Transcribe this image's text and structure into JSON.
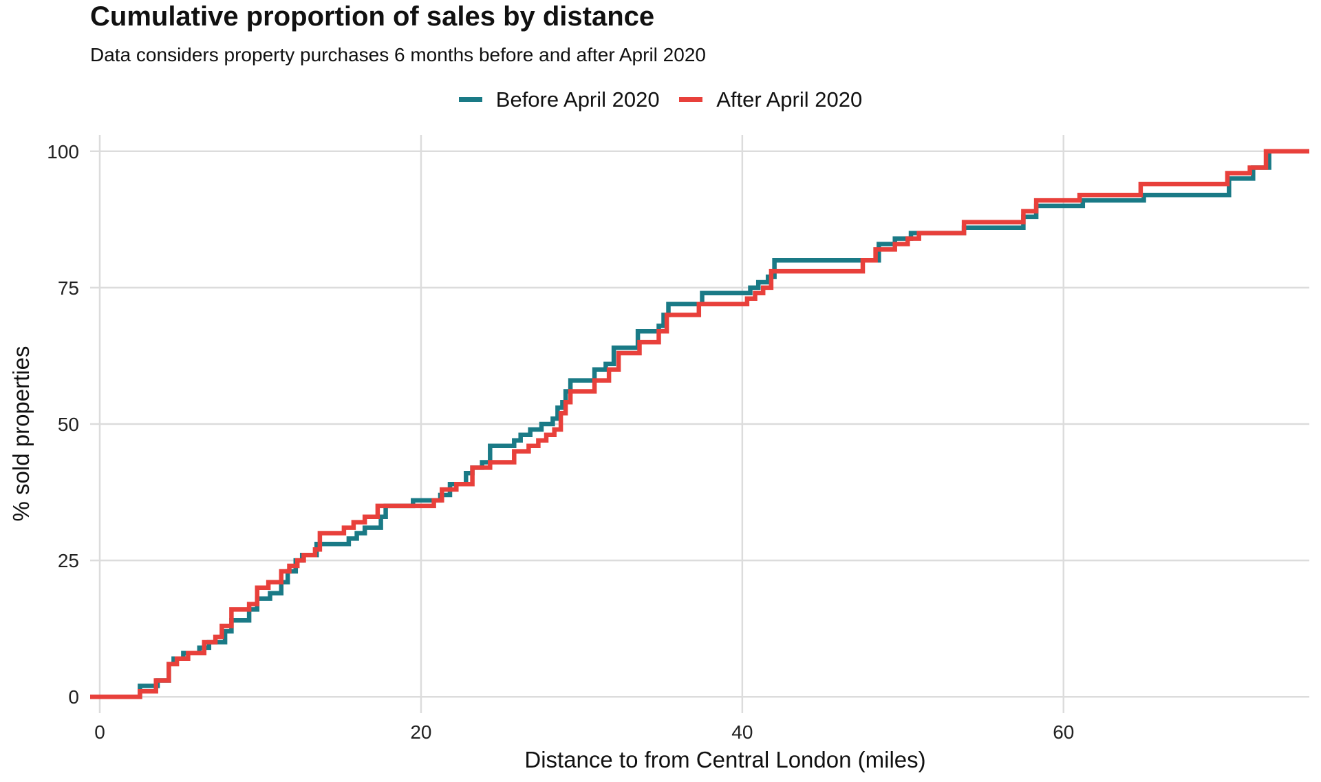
{
  "chart_data": {
    "type": "line",
    "step": true,
    "title": "Cumulative proportion of sales by distance",
    "subtitle": "Data considers property purchases 6 months before and after April 2020",
    "xlabel": "Distance to from Central London (miles)",
    "ylabel": "% sold properties",
    "xlim": [
      -0.6,
      75.3
    ],
    "ylim": [
      -3,
      103
    ],
    "xticks": [
      0,
      20,
      40,
      60
    ],
    "yticks": [
      0,
      25,
      50,
      75,
      100
    ],
    "grid": true,
    "legend_position": "top",
    "series": [
      {
        "name": "Before April 2020",
        "color": "#1a7a86",
        "points": [
          [
            -0.6,
            0
          ],
          [
            2.5,
            0
          ],
          [
            2.5,
            2
          ],
          [
            3.6,
            2
          ],
          [
            3.6,
            3
          ],
          [
            4.3,
            3
          ],
          [
            4.3,
            6
          ],
          [
            4.6,
            6
          ],
          [
            4.6,
            7
          ],
          [
            5.2,
            7
          ],
          [
            5.2,
            8
          ],
          [
            6.2,
            8
          ],
          [
            6.2,
            9
          ],
          [
            6.8,
            9
          ],
          [
            6.8,
            10
          ],
          [
            7.8,
            10
          ],
          [
            7.8,
            12
          ],
          [
            8.2,
            12
          ],
          [
            8.2,
            14
          ],
          [
            9.3,
            14
          ],
          [
            9.3,
            16
          ],
          [
            9.8,
            16
          ],
          [
            9.8,
            18
          ],
          [
            10.6,
            18
          ],
          [
            10.6,
            19
          ],
          [
            11.3,
            19
          ],
          [
            11.3,
            21
          ],
          [
            11.7,
            21
          ],
          [
            11.7,
            23
          ],
          [
            12.2,
            23
          ],
          [
            12.2,
            25
          ],
          [
            12.6,
            25
          ],
          [
            12.6,
            26
          ],
          [
            13.5,
            26
          ],
          [
            13.5,
            28
          ],
          [
            15.5,
            28
          ],
          [
            15.5,
            29
          ],
          [
            16.0,
            29
          ],
          [
            16.0,
            30
          ],
          [
            16.5,
            30
          ],
          [
            16.5,
            31
          ],
          [
            17.5,
            31
          ],
          [
            17.5,
            33
          ],
          [
            17.8,
            33
          ],
          [
            17.8,
            35
          ],
          [
            19.5,
            35
          ],
          [
            19.5,
            36
          ],
          [
            21.2,
            36
          ],
          [
            21.2,
            37
          ],
          [
            21.8,
            37
          ],
          [
            21.8,
            39
          ],
          [
            22.8,
            39
          ],
          [
            22.8,
            41
          ],
          [
            23.2,
            41
          ],
          [
            23.2,
            42
          ],
          [
            23.8,
            42
          ],
          [
            23.8,
            43
          ],
          [
            24.3,
            43
          ],
          [
            24.3,
            46
          ],
          [
            25.8,
            46
          ],
          [
            25.8,
            47
          ],
          [
            26.2,
            47
          ],
          [
            26.2,
            48
          ],
          [
            26.8,
            48
          ],
          [
            26.8,
            49
          ],
          [
            27.5,
            49
          ],
          [
            27.5,
            50
          ],
          [
            28.2,
            50
          ],
          [
            28.2,
            51
          ],
          [
            28.5,
            51
          ],
          [
            28.5,
            53
          ],
          [
            28.8,
            53
          ],
          [
            28.8,
            54
          ],
          [
            29.0,
            54
          ],
          [
            29.0,
            56
          ],
          [
            29.3,
            56
          ],
          [
            29.3,
            58
          ],
          [
            30.8,
            58
          ],
          [
            30.8,
            60
          ],
          [
            31.5,
            60
          ],
          [
            31.5,
            61
          ],
          [
            32.0,
            61
          ],
          [
            32.0,
            64
          ],
          [
            33.5,
            64
          ],
          [
            33.5,
            67
          ],
          [
            34.8,
            67
          ],
          [
            34.8,
            68
          ],
          [
            35.1,
            68
          ],
          [
            35.1,
            70
          ],
          [
            35.4,
            70
          ],
          [
            35.4,
            72
          ],
          [
            37.5,
            72
          ],
          [
            37.5,
            74
          ],
          [
            40.5,
            74
          ],
          [
            40.5,
            75
          ],
          [
            41.0,
            75
          ],
          [
            41.0,
            76
          ],
          [
            41.6,
            76
          ],
          [
            41.6,
            77
          ],
          [
            42.0,
            77
          ],
          [
            42.0,
            80
          ],
          [
            48.5,
            80
          ],
          [
            48.5,
            83
          ],
          [
            49.5,
            83
          ],
          [
            49.5,
            84
          ],
          [
            50.5,
            84
          ],
          [
            50.5,
            85
          ],
          [
            53.8,
            85
          ],
          [
            53.8,
            86
          ],
          [
            57.5,
            86
          ],
          [
            57.5,
            88
          ],
          [
            58.3,
            88
          ],
          [
            58.3,
            90
          ],
          [
            61.2,
            90
          ],
          [
            61.2,
            91
          ],
          [
            65.0,
            91
          ],
          [
            65.0,
            92
          ],
          [
            70.3,
            92
          ],
          [
            70.3,
            95
          ],
          [
            71.8,
            95
          ],
          [
            71.8,
            97
          ],
          [
            72.8,
            97
          ],
          [
            72.8,
            100
          ],
          [
            75.3,
            100
          ]
        ]
      },
      {
        "name": "After April 2020",
        "color": "#e8403b",
        "points": [
          [
            -0.6,
            0
          ],
          [
            2.5,
            0
          ],
          [
            2.5,
            1
          ],
          [
            3.5,
            1
          ],
          [
            3.5,
            3
          ],
          [
            4.3,
            3
          ],
          [
            4.3,
            6
          ],
          [
            4.8,
            6
          ],
          [
            4.8,
            7
          ],
          [
            5.5,
            7
          ],
          [
            5.5,
            8
          ],
          [
            6.5,
            8
          ],
          [
            6.5,
            10
          ],
          [
            7.2,
            10
          ],
          [
            7.2,
            11
          ],
          [
            7.6,
            11
          ],
          [
            7.6,
            13
          ],
          [
            8.2,
            13
          ],
          [
            8.2,
            16
          ],
          [
            9.3,
            16
          ],
          [
            9.3,
            17
          ],
          [
            9.8,
            17
          ],
          [
            9.8,
            20
          ],
          [
            10.5,
            20
          ],
          [
            10.5,
            21
          ],
          [
            11.3,
            21
          ],
          [
            11.3,
            23
          ],
          [
            11.8,
            23
          ],
          [
            11.8,
            24
          ],
          [
            12.3,
            24
          ],
          [
            12.3,
            25
          ],
          [
            12.7,
            25
          ],
          [
            12.7,
            26
          ],
          [
            13.4,
            26
          ],
          [
            13.4,
            27
          ],
          [
            13.7,
            27
          ],
          [
            13.7,
            30
          ],
          [
            15.2,
            30
          ],
          [
            15.2,
            31
          ],
          [
            15.8,
            31
          ],
          [
            15.8,
            32
          ],
          [
            16.5,
            32
          ],
          [
            16.5,
            33
          ],
          [
            17.3,
            33
          ],
          [
            17.3,
            35
          ],
          [
            20.8,
            35
          ],
          [
            20.8,
            36
          ],
          [
            21.3,
            36
          ],
          [
            21.3,
            38
          ],
          [
            22.2,
            38
          ],
          [
            22.2,
            39
          ],
          [
            23.2,
            39
          ],
          [
            23.2,
            42
          ],
          [
            24.3,
            42
          ],
          [
            24.3,
            43
          ],
          [
            25.8,
            43
          ],
          [
            25.8,
            45
          ],
          [
            26.7,
            45
          ],
          [
            26.7,
            46
          ],
          [
            27.3,
            46
          ],
          [
            27.3,
            47
          ],
          [
            27.8,
            47
          ],
          [
            27.8,
            48
          ],
          [
            28.3,
            48
          ],
          [
            28.3,
            49
          ],
          [
            28.7,
            49
          ],
          [
            28.7,
            52
          ],
          [
            29.0,
            52
          ],
          [
            29.0,
            54
          ],
          [
            29.3,
            54
          ],
          [
            29.3,
            56
          ],
          [
            30.8,
            56
          ],
          [
            30.8,
            58
          ],
          [
            31.7,
            58
          ],
          [
            31.7,
            60
          ],
          [
            32.3,
            60
          ],
          [
            32.3,
            63
          ],
          [
            33.6,
            63
          ],
          [
            33.6,
            65
          ],
          [
            34.8,
            65
          ],
          [
            34.8,
            67
          ],
          [
            35.3,
            67
          ],
          [
            35.3,
            70
          ],
          [
            37.3,
            70
          ],
          [
            37.3,
            72
          ],
          [
            40.3,
            72
          ],
          [
            40.3,
            73
          ],
          [
            40.8,
            73
          ],
          [
            40.8,
            74
          ],
          [
            41.3,
            74
          ],
          [
            41.3,
            75
          ],
          [
            41.8,
            75
          ],
          [
            41.8,
            78
          ],
          [
            47.5,
            78
          ],
          [
            47.5,
            80
          ],
          [
            48.3,
            80
          ],
          [
            48.3,
            82
          ],
          [
            49.5,
            82
          ],
          [
            49.5,
            83
          ],
          [
            50.3,
            83
          ],
          [
            50.3,
            84
          ],
          [
            51.0,
            84
          ],
          [
            51.0,
            85
          ],
          [
            53.8,
            85
          ],
          [
            53.8,
            87
          ],
          [
            57.5,
            87
          ],
          [
            57.5,
            89
          ],
          [
            58.3,
            89
          ],
          [
            58.3,
            91
          ],
          [
            61.0,
            91
          ],
          [
            61.0,
            92
          ],
          [
            64.8,
            92
          ],
          [
            64.8,
            94
          ],
          [
            70.2,
            94
          ],
          [
            70.2,
            96
          ],
          [
            71.6,
            96
          ],
          [
            71.6,
            97
          ],
          [
            72.6,
            97
          ],
          [
            72.6,
            100
          ],
          [
            75.3,
            100
          ]
        ]
      }
    ]
  }
}
